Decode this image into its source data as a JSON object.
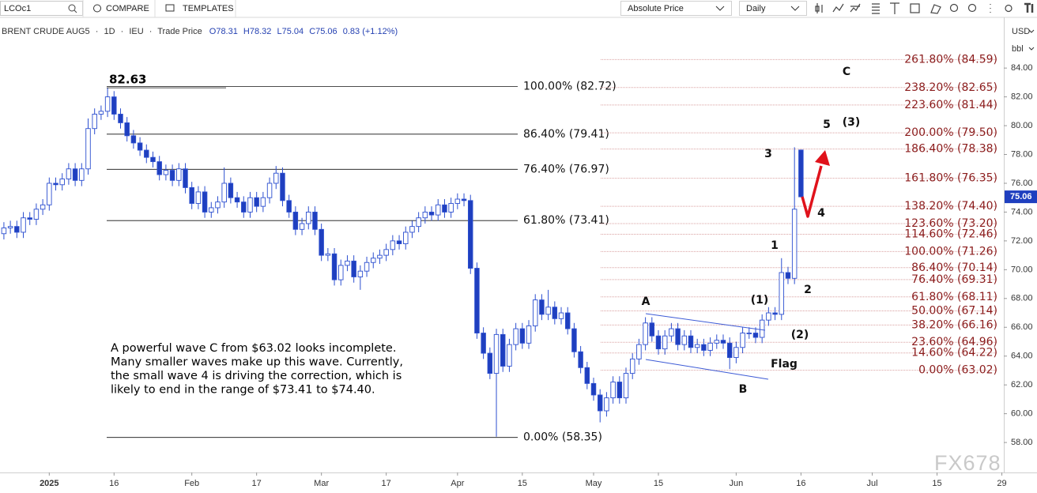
{
  "toolbar": {
    "symbol": "LCOc1",
    "compare": "COMPARE",
    "templates": "TEMPLATES",
    "price_mode": "Absolute Price",
    "interval": "Daily"
  },
  "legend_bar": {
    "title": "BRENT CRUDE AUG5",
    "separator": "·",
    "interval": "1D",
    "exchange": "IEU",
    "price_type": "Trade Price",
    "open": "O78.31",
    "high": "H78.32",
    "low": "L75.04",
    "close": "C75.06",
    "change": "0.83 (+1.12%)"
  },
  "watermark": "FX678",
  "chart_data": {
    "type": "candlestick",
    "up_color": "#ffffff",
    "down_color": "#1f3fbf",
    "wick_color": "#2c4fd0",
    "xlim": [
      -0.6,
      154.3
    ],
    "xticks": [
      {
        "value": 7,
        "label": "2025"
      },
      {
        "value": 17,
        "label": "16"
      },
      {
        "value": 29,
        "label": "Feb"
      },
      {
        "value": 39,
        "label": "17"
      },
      {
        "value": 49,
        "label": "Mar"
      },
      {
        "value": 59,
        "label": "17"
      },
      {
        "value": 70,
        "label": "Apr"
      },
      {
        "value": 80,
        "label": "15"
      },
      {
        "value": 91,
        "label": "May"
      },
      {
        "value": 101,
        "label": "15"
      },
      {
        "value": 113,
        "label": "Jun"
      },
      {
        "value": 123,
        "label": "16"
      },
      {
        "value": 134,
        "label": "Jul"
      },
      {
        "value": 144,
        "label": "15"
      },
      {
        "value": 154,
        "label": "29"
      }
    ],
    "ylim": [
      55.92,
      87.19
    ],
    "yticks": [
      {
        "value": 84,
        "label": "84.00"
      },
      {
        "value": 82,
        "label": "82.00"
      },
      {
        "value": 80,
        "label": "80.00"
      },
      {
        "value": 78,
        "label": "78.00"
      },
      {
        "value": 76,
        "label": "76.00"
      },
      {
        "value": 74,
        "label": "74.00"
      },
      {
        "value": 72,
        "label": "72.00"
      },
      {
        "value": 70,
        "label": "70.00"
      },
      {
        "value": 68,
        "label": "68.00"
      },
      {
        "value": 66,
        "label": "66.00"
      },
      {
        "value": 64,
        "label": "64.00"
      },
      {
        "value": 62,
        "label": "62.00"
      },
      {
        "value": 60,
        "label": "60.00"
      },
      {
        "value": 58,
        "label": "58.00"
      }
    ],
    "y_currency": "USD",
    "y_unit": "bbl",
    "open": [
      72.5,
      72.9,
      73.0,
      72.6,
      73.6,
      73.5,
      74.2,
      74.5,
      76.0,
      75.9,
      76.3,
      77.0,
      76.2,
      77.0,
      79.8,
      80.8,
      81.0,
      82.0,
      80.8,
      80.2,
      79.3,
      78.8,
      78.3,
      77.8,
      77.5,
      76.6,
      76.9,
      76.2,
      77.0,
      75.7,
      74.6,
      75.4,
      74.0,
      74.3,
      74.7,
      76.0,
      75.0,
      74.7,
      74.0,
      75.0,
      74.4,
      75.0,
      76.0,
      76.7,
      74.8,
      74.0,
      72.8,
      73.2,
      74.0,
      72.8,
      71.0,
      71.1,
      69.3,
      70.3,
      70.6,
      69.5,
      69.9,
      70.5,
      70.8,
      71.0,
      71.4,
      72.0,
      71.8,
      72.6,
      73.0,
      73.6,
      74.0,
      73.8,
      74.5,
      74.0,
      74.6,
      74.9,
      74.8,
      70.1,
      65.6,
      64.2,
      62.8,
      65.5,
      63.3,
      64.8,
      65.9,
      64.9,
      66.1,
      67.9,
      66.9,
      67.4,
      66.6,
      67.0,
      65.9,
      64.3,
      63.2,
      62.1,
      61.3,
      60.2,
      61.1,
      62.2,
      61.1,
      62.8,
      63.8,
      64.8,
      66.3,
      65.4,
      64.5,
      65.4,
      65.9,
      64.8,
      65.4,
      64.6,
      64.8,
      64.4,
      64.9,
      65.1,
      64.9,
      63.9,
      64.6,
      65.6,
      65.6,
      65.3,
      66.5,
      67.0,
      66.9,
      69.8,
      69.4,
      78.31
    ],
    "high": [
      73.3,
      73.4,
      73.4,
      74.0,
      74.0,
      74.6,
      74.9,
      76.4,
      76.4,
      76.7,
      77.4,
      77.4,
      77.4,
      80.5,
      81.2,
      81.4,
      82.63,
      82.4,
      81.2,
      80.6,
      79.7,
      79.2,
      78.7,
      78.2,
      77.9,
      77.3,
      77.3,
      77.4,
      77.4,
      76.1,
      75.8,
      75.8,
      74.7,
      75.1,
      77.1,
      76.4,
      75.4,
      75.1,
      75.4,
      75.4,
      75.4,
      76.4,
      77.2,
      77.1,
      75.2,
      74.4,
      73.6,
      74.4,
      74.4,
      73.2,
      71.5,
      71.5,
      70.7,
      71.0,
      71.0,
      70.3,
      70.9,
      71.2,
      71.4,
      71.8,
      72.4,
      72.4,
      73.0,
      73.4,
      74.0,
      74.4,
      74.4,
      74.9,
      74.9,
      75.0,
      75.3,
      75.3,
      75.2,
      70.5,
      66.0,
      64.6,
      65.9,
      65.9,
      65.2,
      66.3,
      66.3,
      66.5,
      68.3,
      68.3,
      68.6,
      67.8,
      67.4,
      67.4,
      66.3,
      64.7,
      63.6,
      62.5,
      61.7,
      61.5,
      62.6,
      62.6,
      63.2,
      64.2,
      65.2,
      66.7,
      66.7,
      65.8,
      65.8,
      66.3,
      66.3,
      65.8,
      65.8,
      65.2,
      65.2,
      65.3,
      65.5,
      65.5,
      65.3,
      65.0,
      66.0,
      66.0,
      66.0,
      66.9,
      67.4,
      67.4,
      70.8,
      70.2,
      78.5,
      78.32
    ],
    "low": [
      72.1,
      72.5,
      72.2,
      72.2,
      73.1,
      73.1,
      73.8,
      74.1,
      75.5,
      75.5,
      75.9,
      75.8,
      75.8,
      76.6,
      79.4,
      80.4,
      80.6,
      80.4,
      79.8,
      78.9,
      78.4,
      77.9,
      77.4,
      77.1,
      76.2,
      76.2,
      75.8,
      75.8,
      75.3,
      74.2,
      74.2,
      73.6,
      73.6,
      73.9,
      74.3,
      74.6,
      74.3,
      73.6,
      73.6,
      74.0,
      74.0,
      74.6,
      75.6,
      74.4,
      73.6,
      72.4,
      72.4,
      72.8,
      72.4,
      70.6,
      70.6,
      68.9,
      68.9,
      69.9,
      69.1,
      68.6,
      69.5,
      70.1,
      70.4,
      70.6,
      71.0,
      71.4,
      71.4,
      72.2,
      72.6,
      73.2,
      73.4,
      73.4,
      73.6,
      73.6,
      74.2,
      74.4,
      69.7,
      65.2,
      63.8,
      62.4,
      58.4,
      62.9,
      62.9,
      64.4,
      64.5,
      64.5,
      65.7,
      66.5,
      66.5,
      66.2,
      66.2,
      65.5,
      63.9,
      62.8,
      61.7,
      60.9,
      59.4,
      59.8,
      60.7,
      60.7,
      60.7,
      62.4,
      63.4,
      64.4,
      65.0,
      64.1,
      64.1,
      65.0,
      64.4,
      64.4,
      64.2,
      64.2,
      64.0,
      64.0,
      64.5,
      64.5,
      63.1,
      63.5,
      64.2,
      65.2,
      64.9,
      64.9,
      66.1,
      66.5,
      66.5,
      69.0,
      69.0,
      75.04
    ],
    "close": [
      72.9,
      73.0,
      72.6,
      73.6,
      73.5,
      74.2,
      74.5,
      76.0,
      75.9,
      76.3,
      77.0,
      76.2,
      77.0,
      79.8,
      80.8,
      81.0,
      82.0,
      80.8,
      80.2,
      79.3,
      78.8,
      78.3,
      77.8,
      77.5,
      76.6,
      76.9,
      76.2,
      77.0,
      75.7,
      74.6,
      75.4,
      74.0,
      74.3,
      74.7,
      76.0,
      75.0,
      74.7,
      74.0,
      75.0,
      74.4,
      75.0,
      76.0,
      76.7,
      74.8,
      74.0,
      72.8,
      73.2,
      74.0,
      72.8,
      71.0,
      71.1,
      69.3,
      70.3,
      70.6,
      69.5,
      69.9,
      70.5,
      70.8,
      71.0,
      71.4,
      72.0,
      71.8,
      72.6,
      73.0,
      73.6,
      74.0,
      73.8,
      74.5,
      74.0,
      74.6,
      74.9,
      74.8,
      70.1,
      65.6,
      64.2,
      62.8,
      65.5,
      63.3,
      64.8,
      65.9,
      64.9,
      66.1,
      67.9,
      66.9,
      67.4,
      66.6,
      67.0,
      65.9,
      64.3,
      63.2,
      62.1,
      61.3,
      60.2,
      61.1,
      62.2,
      61.1,
      62.8,
      63.8,
      64.8,
      66.3,
      65.4,
      64.5,
      65.4,
      65.9,
      64.8,
      65.4,
      64.6,
      64.8,
      64.4,
      64.9,
      65.1,
      64.9,
      63.9,
      64.6,
      65.6,
      65.6,
      65.3,
      66.5,
      67.0,
      66.9,
      69.8,
      69.4,
      74.2,
      75.06
    ],
    "fib_retracement": {
      "color": "#111111",
      "levels": [
        {
          "value": 82.72,
          "label": "100.00% (82.72)"
        },
        {
          "value": 79.41,
          "label": "86.40% (79.41)"
        },
        {
          "value": 76.97,
          "label": "76.40% (76.97)"
        },
        {
          "value": 73.41,
          "label": "61.80% (73.41)"
        },
        {
          "value": 58.35,
          "label": "0.00% (58.35)"
        }
      ]
    },
    "fib_extension": {
      "color": "#8b1c1c",
      "line_color": "#d9a0a0",
      "levels": [
        {
          "value": 84.59,
          "label": "261.80% (84.59)"
        },
        {
          "value": 82.65,
          "label": "238.20% (82.65)"
        },
        {
          "value": 81.44,
          "label": "223.60% (81.44)"
        },
        {
          "value": 79.5,
          "label": "200.00% (79.50)"
        },
        {
          "value": 78.38,
          "label": "186.40% (78.38)"
        },
        {
          "value": 76.35,
          "label": "161.80% (76.35)"
        },
        {
          "value": 74.4,
          "label": "138.20% (74.40)"
        },
        {
          "value": 73.2,
          "label": "123.60% (73.20)"
        },
        {
          "value": 72.46,
          "label": "114.60% (72.46)"
        },
        {
          "value": 71.26,
          "label": "100.00% (71.26)"
        },
        {
          "value": 70.14,
          "label": "86.40% (70.14)"
        },
        {
          "value": 69.31,
          "label": "76.40% (69.31)"
        },
        {
          "value": 68.11,
          "label": "61.80% (68.11)"
        },
        {
          "value": 67.14,
          "label": "50.00% (67.14)"
        },
        {
          "value": 66.16,
          "label": "38.20% (66.16)"
        },
        {
          "value": 64.96,
          "label": "23.60% (64.96)"
        },
        {
          "value": 64.22,
          "label": "14.60% (64.22)"
        },
        {
          "value": 63.02,
          "label": "0.00% (63.02)"
        }
      ]
    },
    "wave_labels": [
      "A",
      "B",
      "C",
      "1",
      "2",
      "3",
      "4",
      "5",
      "(1)",
      "(2)",
      "(3)",
      "Flag"
    ],
    "note": [
      "A powerful wave C from $63.02 looks incomplete.",
      "Many smaller waves make up this wave. Currently,",
      "the small wave 4 is driving the correction, which is",
      "likely to end in the range of $73.41 to $74.40."
    ]
  }
}
